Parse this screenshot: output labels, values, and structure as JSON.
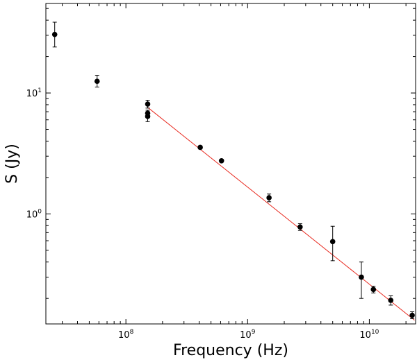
{
  "chart_data": {
    "type": "scatter",
    "title": "",
    "xlabel": "Frequency (Hz)",
    "ylabel": "S (Jy)",
    "xscale": "log",
    "yscale": "log",
    "xlim": [
      22000000,
      24000000000
    ],
    "ylim": [
      0.123,
      55
    ],
    "grid": false,
    "legend": "none",
    "x_ticks": [
      {
        "value": 100000000,
        "mant": "10",
        "exp": "8"
      },
      {
        "value": 1000000000,
        "mant": "10",
        "exp": "9"
      },
      {
        "value": 10000000000,
        "mant": "10",
        "exp": "10"
      }
    ],
    "y_ticks": [
      {
        "value": 1,
        "mant": "10",
        "exp": "0"
      },
      {
        "value": 10,
        "mant": "10",
        "exp": "1"
      }
    ],
    "series": [
      {
        "points": [
          {
            "x": 26000000,
            "y": 30.5,
            "lo": 24,
            "hi": 38.5
          },
          {
            "x": 58000000,
            "y": 12.5,
            "lo": 11.2,
            "hi": 14
          },
          {
            "x": 151000000,
            "y": 8.1,
            "lo": 7.5,
            "hi": 8.7
          },
          {
            "x": 151000000,
            "y": 6.8,
            "lo": 6.4,
            "hi": 7.2
          },
          {
            "x": 151000000,
            "y": 6.4,
            "lo": 5.8,
            "hi": 7.0
          },
          {
            "x": 408000000,
            "y": 3.55,
            "lo": 3.45,
            "hi": 3.65
          },
          {
            "x": 610000000,
            "y": 2.75,
            "lo": 2.68,
            "hi": 2.82
          },
          {
            "x": 1500000000,
            "y": 1.36,
            "lo": 1.26,
            "hi": 1.46
          },
          {
            "x": 2700000000,
            "y": 0.78,
            "lo": 0.73,
            "hi": 0.83
          },
          {
            "x": 5000000000,
            "y": 0.59,
            "lo": 0.41,
            "hi": 0.79
          },
          {
            "x": 8600000000,
            "y": 0.3,
            "lo": 0.2,
            "hi": 0.4
          },
          {
            "x": 10800000000,
            "y": 0.237,
            "lo": 0.222,
            "hi": 0.252
          },
          {
            "x": 15000000000,
            "y": 0.193,
            "lo": 0.176,
            "hi": 0.21
          },
          {
            "x": 22500000000,
            "y": 0.145,
            "lo": 0.136,
            "hi": 0.155
          }
        ],
        "color": "#000000"
      }
    ],
    "fit_line": {
      "color": "#e8281e",
      "from": {
        "x": 151000000,
        "y": 7.6
      },
      "to": {
        "x": 23500000000,
        "y": 0.132
      }
    }
  }
}
